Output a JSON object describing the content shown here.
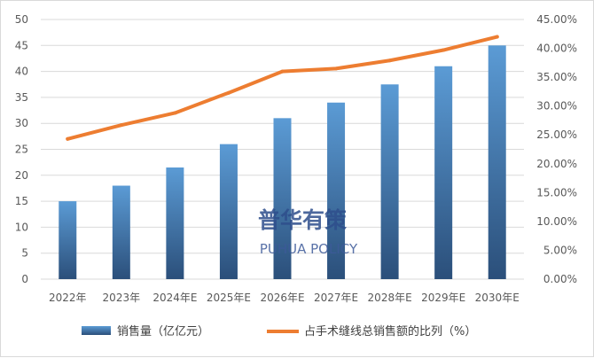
{
  "chart_data": {
    "type": "bar",
    "categories": [
      "2022年",
      "2023年",
      "2024年E",
      "2025年E",
      "2026年E",
      "2027年E",
      "2028年E",
      "2029年E",
      "2030年E"
    ],
    "series": [
      {
        "name": "销售量（亿亿元）",
        "type": "bar",
        "axis": "left",
        "values": [
          15,
          18,
          21.5,
          26,
          31,
          34,
          37.5,
          41,
          45
        ]
      },
      {
        "name": "占手术缝线总销售额的比列（%）",
        "type": "line",
        "axis": "right",
        "unit": "%",
        "values": [
          24.3,
          26.7,
          28.8,
          32.3,
          36.0,
          36.5,
          37.9,
          39.7,
          42.0
        ]
      }
    ],
    "left_axis": {
      "min": 0,
      "max": 50,
      "step": 5,
      "ticks": [
        "0",
        "5",
        "10",
        "15",
        "20",
        "25",
        "30",
        "35",
        "40",
        "45",
        "50"
      ]
    },
    "right_axis": {
      "min": 0,
      "max": 45,
      "step": 5,
      "ticks": [
        "0.00%",
        "5.00%",
        "10.00%",
        "15.00%",
        "20.00%",
        "25.00%",
        "30.00%",
        "35.00%",
        "40.00%",
        "45.00%"
      ]
    },
    "grid": true,
    "legend_position": "bottom",
    "colors": {
      "bar_top": "#5b9bd5",
      "bar_bottom": "#2b4f7a",
      "line": "#ed7d31",
      "grid": "#d9d9d9"
    }
  },
  "watermark": {
    "cn": "普华有策",
    "en": "PUHUA POLICY"
  }
}
